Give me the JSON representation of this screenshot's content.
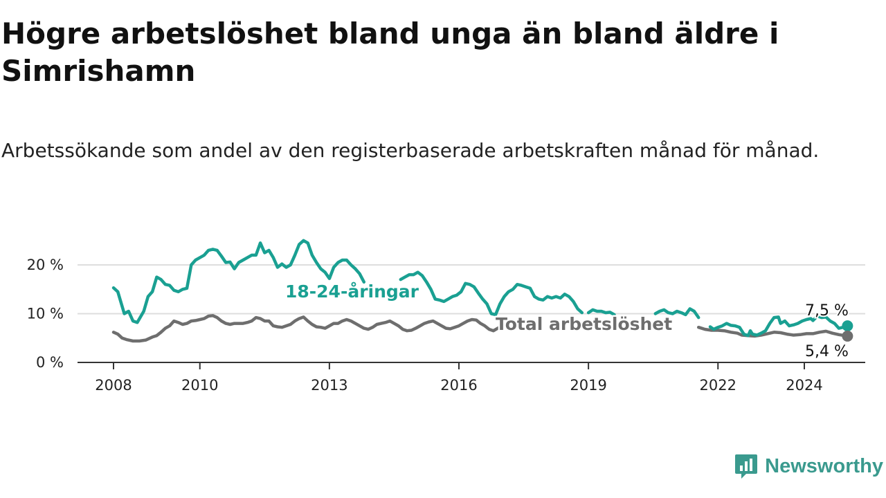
{
  "title": "Högre arbetslöshet bland unga än bland äldre i Simrishamn",
  "subtitle": "Arbetssökande som andel av den registerbaserade arbetskraften månad för månad.",
  "brand": {
    "name": "Newsworthy",
    "color": "#3a9a8e",
    "icon": "newsworthy-logo-icon"
  },
  "colors": {
    "youth": "#1aa092",
    "total": "#6e6e6e",
    "grid": "#dddddd",
    "axis": "#333333"
  },
  "chart_data": {
    "type": "line",
    "title": "Högre arbetslöshet bland unga än bland äldre i Simrishamn",
    "xlabel": "",
    "ylabel": "",
    "xlim": [
      2007.95,
      2025.2
    ],
    "ylim": [
      0,
      22
    ],
    "grid": true,
    "x_ticks": [
      {
        "value": 2008,
        "label": "2008"
      },
      {
        "value": 2010,
        "label": "2010"
      },
      {
        "value": 2013,
        "label": "2013"
      },
      {
        "value": 2016,
        "label": "2016"
      },
      {
        "value": 2019,
        "label": "2019"
      },
      {
        "value": 2022,
        "label": "2022"
      },
      {
        "value": 2024,
        "label": "2024"
      }
    ],
    "y_ticks": [
      {
        "value": 0,
        "label": "0 %"
      },
      {
        "value": 10,
        "label": "10 %"
      },
      {
        "value": 20,
        "label": "20 %"
      }
    ],
    "series": [
      {
        "name": "18-24-åringar",
        "color": "#1aa092",
        "end_label": "7,5 %",
        "points": [
          [
            2008.0,
            15.3
          ],
          [
            2008.1,
            14.5
          ],
          [
            2008.25,
            10.0
          ],
          [
            2008.35,
            10.5
          ],
          [
            2008.45,
            8.5
          ],
          [
            2008.55,
            8.2
          ],
          [
            2008.7,
            10.5
          ],
          [
            2008.8,
            13.5
          ],
          [
            2008.9,
            14.5
          ],
          [
            2009.0,
            17.5
          ],
          [
            2009.1,
            17.0
          ],
          [
            2009.2,
            16.0
          ],
          [
            2009.3,
            15.8
          ],
          [
            2009.4,
            14.8
          ],
          [
            2009.5,
            14.5
          ],
          [
            2009.6,
            15.0
          ],
          [
            2009.7,
            15.2
          ],
          [
            2009.8,
            20.0
          ],
          [
            2009.9,
            21.0
          ],
          [
            2010.0,
            21.5
          ],
          [
            2010.1,
            22.0
          ],
          [
            2010.2,
            23.0
          ],
          [
            2010.3,
            23.2
          ],
          [
            2010.4,
            23.0
          ],
          [
            2010.5,
            21.8
          ],
          [
            2010.6,
            20.5
          ],
          [
            2010.7,
            20.6
          ],
          [
            2010.8,
            19.2
          ],
          [
            2010.9,
            20.5
          ],
          [
            2011.0,
            21.0
          ],
          [
            2011.1,
            21.5
          ],
          [
            2011.2,
            22.0
          ],
          [
            2011.3,
            22.0
          ],
          [
            2011.4,
            24.5
          ],
          [
            2011.5,
            22.5
          ],
          [
            2011.6,
            23.0
          ],
          [
            2011.7,
            21.5
          ],
          [
            2011.8,
            19.5
          ],
          [
            2011.9,
            20.2
          ],
          [
            2012.0,
            19.5
          ],
          [
            2012.1,
            20.0
          ],
          [
            2012.2,
            22.0
          ],
          [
            2012.3,
            24.2
          ],
          [
            2012.4,
            25.0
          ],
          [
            2012.5,
            24.5
          ],
          [
            2012.6,
            22.0
          ],
          [
            2012.7,
            20.5
          ],
          [
            2012.8,
            19.2
          ],
          [
            2012.9,
            18.5
          ],
          [
            2013.0,
            17.2
          ],
          [
            2013.1,
            19.5
          ],
          [
            2013.2,
            20.5
          ],
          [
            2013.3,
            21.0
          ],
          [
            2013.4,
            21.0
          ],
          [
            2013.5,
            20.0
          ],
          [
            2013.6,
            19.2
          ],
          [
            2013.7,
            18.2
          ],
          [
            2013.8,
            16.5
          ]
        ],
        "points_2": [
          [
            2014.65,
            17.0
          ],
          [
            2014.75,
            17.5
          ],
          [
            2014.85,
            18.0
          ],
          [
            2014.95,
            18.0
          ],
          [
            2015.05,
            18.5
          ],
          [
            2015.15,
            17.8
          ],
          [
            2015.25,
            16.5
          ],
          [
            2015.35,
            15.0
          ],
          [
            2015.45,
            13.0
          ],
          [
            2015.55,
            12.8
          ],
          [
            2015.65,
            12.5
          ],
          [
            2015.75,
            13.0
          ],
          [
            2015.85,
            13.5
          ],
          [
            2015.95,
            13.8
          ],
          [
            2016.05,
            14.5
          ],
          [
            2016.15,
            16.2
          ],
          [
            2016.25,
            16.0
          ],
          [
            2016.35,
            15.5
          ],
          [
            2016.45,
            14.2
          ],
          [
            2016.55,
            13.0
          ],
          [
            2016.65,
            12.0
          ],
          [
            2016.75,
            10.0
          ],
          [
            2016.85,
            9.8
          ],
          [
            2016.95,
            12.0
          ],
          [
            2017.05,
            13.5
          ],
          [
            2017.15,
            14.5
          ],
          [
            2017.25,
            15.0
          ],
          [
            2017.35,
            16.0
          ],
          [
            2017.45,
            15.8
          ],
          [
            2017.55,
            15.5
          ],
          [
            2017.65,
            15.2
          ],
          [
            2017.75,
            13.5
          ],
          [
            2017.85,
            13.0
          ],
          [
            2017.95,
            12.8
          ],
          [
            2018.05,
            13.5
          ],
          [
            2018.15,
            13.2
          ],
          [
            2018.25,
            13.5
          ],
          [
            2018.35,
            13.2
          ],
          [
            2018.45,
            14.0
          ],
          [
            2018.55,
            13.5
          ],
          [
            2018.65,
            12.5
          ],
          [
            2018.75,
            11.0
          ],
          [
            2018.85,
            10.2
          ]
        ],
        "points_3": [
          [
            2019.0,
            10.2
          ],
          [
            2019.1,
            10.8
          ],
          [
            2019.2,
            10.5
          ],
          [
            2019.3,
            10.5
          ],
          [
            2019.4,
            10.2
          ],
          [
            2019.5,
            10.3
          ],
          [
            2019.6,
            9.8
          ]
        ],
        "points_4": [
          [
            2020.55,
            10.0
          ],
          [
            2020.65,
            10.5
          ],
          [
            2020.75,
            10.8
          ],
          [
            2020.85,
            10.2
          ],
          [
            2020.95,
            10.0
          ],
          [
            2021.05,
            10.5
          ],
          [
            2021.15,
            10.2
          ],
          [
            2021.25,
            9.8
          ],
          [
            2021.35,
            11.0
          ],
          [
            2021.45,
            10.5
          ],
          [
            2021.55,
            9.2
          ]
        ],
        "points_5": [
          [
            2021.82,
            7.3
          ],
          [
            2021.9,
            6.8
          ],
          [
            2022.0,
            7.2
          ],
          [
            2022.1,
            7.5
          ],
          [
            2022.2,
            8.0
          ],
          [
            2022.3,
            7.6
          ],
          [
            2022.4,
            7.5
          ],
          [
            2022.5,
            7.2
          ],
          [
            2022.6,
            5.8
          ],
          [
            2022.7,
            5.5
          ],
          [
            2022.75,
            6.5
          ],
          [
            2022.8,
            5.8
          ],
          [
            2022.9,
            5.6
          ],
          [
            2023.0,
            6.0
          ],
          [
            2023.1,
            6.5
          ],
          [
            2023.2,
            8.0
          ],
          [
            2023.3,
            9.2
          ],
          [
            2023.4,
            9.3
          ],
          [
            2023.45,
            8.0
          ],
          [
            2023.55,
            8.5
          ],
          [
            2023.65,
            7.5
          ],
          [
            2023.75,
            7.7
          ],
          [
            2023.85,
            8.0
          ],
          [
            2023.95,
            8.5
          ],
          [
            2024.05,
            8.8
          ],
          [
            2024.15,
            9.0
          ],
          [
            2024.2,
            8.6
          ],
          [
            2024.3,
            9.5
          ],
          [
            2024.4,
            9.2
          ],
          [
            2024.5,
            9.3
          ],
          [
            2024.6,
            8.5
          ],
          [
            2024.7,
            8.0
          ],
          [
            2024.8,
            7.0
          ],
          [
            2024.9,
            7.2
          ],
          [
            2025.0,
            7.5
          ]
        ]
      },
      {
        "name": "Total arbetslöshet",
        "color": "#6e6e6e",
        "end_label": "5,4 %",
        "points": [
          [
            2008.0,
            6.2
          ],
          [
            2008.1,
            5.8
          ],
          [
            2008.2,
            5.0
          ],
          [
            2008.3,
            4.7
          ],
          [
            2008.45,
            4.4
          ],
          [
            2008.6,
            4.4
          ],
          [
            2008.75,
            4.6
          ],
          [
            2008.9,
            5.2
          ],
          [
            2009.0,
            5.5
          ],
          [
            2009.1,
            6.2
          ],
          [
            2009.2,
            7.0
          ],
          [
            2009.3,
            7.5
          ],
          [
            2009.4,
            8.5
          ],
          [
            2009.5,
            8.2
          ],
          [
            2009.6,
            7.8
          ],
          [
            2009.7,
            8.0
          ],
          [
            2009.8,
            8.5
          ],
          [
            2009.9,
            8.6
          ],
          [
            2010.0,
            8.8
          ],
          [
            2010.1,
            9.0
          ],
          [
            2010.2,
            9.5
          ],
          [
            2010.3,
            9.6
          ],
          [
            2010.4,
            9.2
          ],
          [
            2010.5,
            8.5
          ],
          [
            2010.6,
            8.0
          ],
          [
            2010.7,
            7.8
          ],
          [
            2010.8,
            8.0
          ],
          [
            2010.9,
            8.0
          ],
          [
            2011.0,
            8.0
          ],
          [
            2011.1,
            8.2
          ],
          [
            2011.2,
            8.5
          ],
          [
            2011.3,
            9.2
          ],
          [
            2011.4,
            9.0
          ],
          [
            2011.5,
            8.5
          ],
          [
            2011.6,
            8.5
          ],
          [
            2011.7,
            7.5
          ],
          [
            2011.8,
            7.3
          ],
          [
            2011.9,
            7.2
          ],
          [
            2012.0,
            7.5
          ],
          [
            2012.1,
            7.8
          ],
          [
            2012.2,
            8.5
          ],
          [
            2012.3,
            9.0
          ],
          [
            2012.4,
            9.3
          ],
          [
            2012.5,
            8.5
          ],
          [
            2012.6,
            7.8
          ],
          [
            2012.7,
            7.3
          ],
          [
            2012.8,
            7.2
          ],
          [
            2012.9,
            7.0
          ],
          [
            2013.0,
            7.5
          ],
          [
            2013.1,
            8.0
          ],
          [
            2013.2,
            8.0
          ],
          [
            2013.3,
            8.5
          ],
          [
            2013.4,
            8.8
          ],
          [
            2013.5,
            8.5
          ],
          [
            2013.6,
            8.0
          ],
          [
            2013.7,
            7.5
          ],
          [
            2013.8,
            7.0
          ],
          [
            2013.9,
            6.8
          ],
          [
            2014.0,
            7.2
          ],
          [
            2014.1,
            7.8
          ],
          [
            2014.2,
            8.0
          ],
          [
            2014.3,
            8.2
          ],
          [
            2014.4,
            8.5
          ],
          [
            2014.5,
            8.0
          ],
          [
            2014.6,
            7.5
          ],
          [
            2014.7,
            6.8
          ],
          [
            2014.8,
            6.5
          ],
          [
            2014.9,
            6.6
          ],
          [
            2015.0,
            7.0
          ],
          [
            2015.1,
            7.5
          ],
          [
            2015.2,
            8.0
          ],
          [
            2015.3,
            8.3
          ],
          [
            2015.4,
            8.5
          ],
          [
            2015.5,
            8.0
          ],
          [
            2015.6,
            7.5
          ],
          [
            2015.7,
            7.0
          ],
          [
            2015.8,
            6.9
          ],
          [
            2015.9,
            7.2
          ],
          [
            2016.0,
            7.5
          ],
          [
            2016.1,
            8.0
          ],
          [
            2016.2,
            8.5
          ],
          [
            2016.3,
            8.8
          ],
          [
            2016.4,
            8.7
          ],
          [
            2016.5,
            8.0
          ],
          [
            2016.6,
            7.5
          ],
          [
            2016.7,
            6.8
          ],
          [
            2016.8,
            6.5
          ],
          [
            2016.9,
            7.0
          ],
          [
            2017.0,
            7.5
          ],
          [
            2017.1,
            8.2
          ]
        ],
        "points_2": [
          [
            2021.55,
            7.2
          ],
          [
            2021.7,
            6.8
          ],
          [
            2021.85,
            6.6
          ],
          [
            2022.0,
            6.6
          ],
          [
            2022.15,
            6.5
          ],
          [
            2022.3,
            6.2
          ],
          [
            2022.45,
            6.0
          ],
          [
            2022.55,
            5.6
          ],
          [
            2022.7,
            5.5
          ],
          [
            2022.85,
            5.4
          ],
          [
            2023.0,
            5.6
          ],
          [
            2023.15,
            5.9
          ],
          [
            2023.3,
            6.2
          ],
          [
            2023.45,
            6.1
          ],
          [
            2023.6,
            5.8
          ],
          [
            2023.75,
            5.6
          ],
          [
            2023.9,
            5.7
          ],
          [
            2024.05,
            5.9
          ],
          [
            2024.2,
            5.9
          ],
          [
            2024.35,
            6.2
          ],
          [
            2024.5,
            6.4
          ],
          [
            2024.65,
            6.0
          ],
          [
            2024.8,
            5.7
          ],
          [
            2025.0,
            5.4
          ]
        ]
      }
    ]
  }
}
